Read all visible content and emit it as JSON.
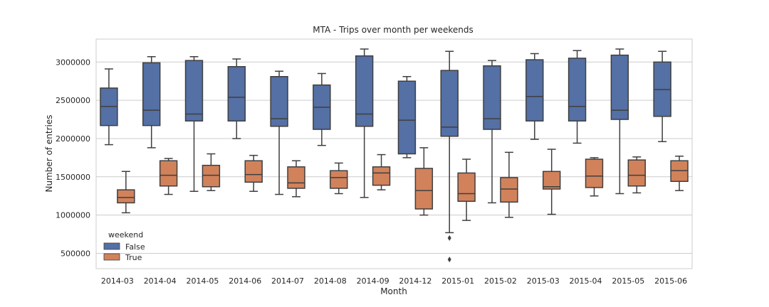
{
  "chart_data": {
    "type": "box",
    "title": "MTA - Trips over month per weekends",
    "xlabel": "Month",
    "ylabel": "Number of entries",
    "ylim": [
      300000,
      3300000
    ],
    "yticks": [
      500000,
      1000000,
      1500000,
      2000000,
      2500000,
      3000000
    ],
    "ytick_labels": [
      "500000",
      "1000000",
      "1500000",
      "2000000",
      "2500000",
      "3000000"
    ],
    "grid": true,
    "categories": [
      "2014-03",
      "2014-04",
      "2014-05",
      "2014-06",
      "2014-07",
      "2014-08",
      "2014-09",
      "2014-12",
      "2015-01",
      "2015-02",
      "2015-03",
      "2015-04",
      "2015-05",
      "2015-06"
    ],
    "legend": {
      "title": "weekend",
      "position": "lower-left",
      "entries": [
        {
          "label": "False",
          "color": "#5470a5"
        },
        {
          "label": "True",
          "color": "#d1825b"
        }
      ]
    },
    "series": [
      {
        "name": "False",
        "color": "#5470a5",
        "boxes": [
          {
            "min": 1920000,
            "q1": 2170000,
            "median": 2420000,
            "q3": 2660000,
            "max": 2910000,
            "outliers": []
          },
          {
            "min": 1880000,
            "q1": 2170000,
            "median": 2370000,
            "q3": 2990000,
            "max": 3070000,
            "outliers": []
          },
          {
            "min": 1310000,
            "q1": 2230000,
            "median": 2320000,
            "q3": 3020000,
            "max": 3070000,
            "outliers": []
          },
          {
            "min": 2000000,
            "q1": 2230000,
            "median": 2540000,
            "q3": 2940000,
            "max": 3040000,
            "outliers": []
          },
          {
            "min": 1270000,
            "q1": 2160000,
            "median": 2260000,
            "q3": 2810000,
            "max": 2880000,
            "outliers": []
          },
          {
            "min": 1910000,
            "q1": 2120000,
            "median": 2410000,
            "q3": 2700000,
            "max": 2850000,
            "outliers": []
          },
          {
            "min": 1230000,
            "q1": 2160000,
            "median": 2320000,
            "q3": 3080000,
            "max": 3170000,
            "outliers": []
          },
          {
            "min": 1750000,
            "q1": 1800000,
            "median": 2240000,
            "q3": 2750000,
            "max": 2810000,
            "outliers": []
          },
          {
            "min": 770000,
            "q1": 2030000,
            "median": 2150000,
            "q3": 2890000,
            "max": 3140000,
            "outliers": [
              700000,
              420000
            ]
          },
          {
            "min": 1160000,
            "q1": 2120000,
            "median": 2260000,
            "q3": 2950000,
            "max": 3020000,
            "outliers": []
          },
          {
            "min": 1990000,
            "q1": 2230000,
            "median": 2550000,
            "q3": 3030000,
            "max": 3110000,
            "outliers": []
          },
          {
            "min": 1940000,
            "q1": 2230000,
            "median": 2420000,
            "q3": 3050000,
            "max": 3150000,
            "outliers": []
          },
          {
            "min": 1280000,
            "q1": 2250000,
            "median": 2370000,
            "q3": 3090000,
            "max": 3170000,
            "outliers": []
          },
          {
            "min": 1960000,
            "q1": 2290000,
            "median": 2640000,
            "q3": 3000000,
            "max": 3140000,
            "outliers": []
          }
        ]
      },
      {
        "name": "True",
        "color": "#d1825b",
        "boxes": [
          {
            "min": 1030000,
            "q1": 1160000,
            "median": 1230000,
            "q3": 1330000,
            "max": 1570000,
            "outliers": []
          },
          {
            "min": 1270000,
            "q1": 1380000,
            "median": 1520000,
            "q3": 1710000,
            "max": 1740000,
            "outliers": []
          },
          {
            "min": 1320000,
            "q1": 1370000,
            "median": 1520000,
            "q3": 1650000,
            "max": 1800000,
            "outliers": []
          },
          {
            "min": 1310000,
            "q1": 1430000,
            "median": 1530000,
            "q3": 1710000,
            "max": 1780000,
            "outliers": []
          },
          {
            "min": 1240000,
            "q1": 1350000,
            "median": 1420000,
            "q3": 1630000,
            "max": 1710000,
            "outliers": []
          },
          {
            "min": 1280000,
            "q1": 1350000,
            "median": 1490000,
            "q3": 1580000,
            "max": 1680000,
            "outliers": []
          },
          {
            "min": 1330000,
            "q1": 1390000,
            "median": 1550000,
            "q3": 1630000,
            "max": 1790000,
            "outliers": []
          },
          {
            "min": 1000000,
            "q1": 1080000,
            "median": 1320000,
            "q3": 1610000,
            "max": 1880000,
            "outliers": []
          },
          {
            "min": 930000,
            "q1": 1180000,
            "median": 1280000,
            "q3": 1550000,
            "max": 1730000,
            "outliers": []
          },
          {
            "min": 970000,
            "q1": 1170000,
            "median": 1340000,
            "q3": 1490000,
            "max": 1820000,
            "outliers": []
          },
          {
            "min": 1010000,
            "q1": 1340000,
            "median": 1370000,
            "q3": 1570000,
            "max": 1860000,
            "outliers": []
          },
          {
            "min": 1250000,
            "q1": 1360000,
            "median": 1510000,
            "q3": 1730000,
            "max": 1750000,
            "outliers": []
          },
          {
            "min": 1290000,
            "q1": 1380000,
            "median": 1520000,
            "q3": 1720000,
            "max": 1760000,
            "outliers": []
          },
          {
            "min": 1320000,
            "q1": 1440000,
            "median": 1580000,
            "q3": 1710000,
            "max": 1770000,
            "outliers": []
          }
        ]
      }
    ]
  }
}
